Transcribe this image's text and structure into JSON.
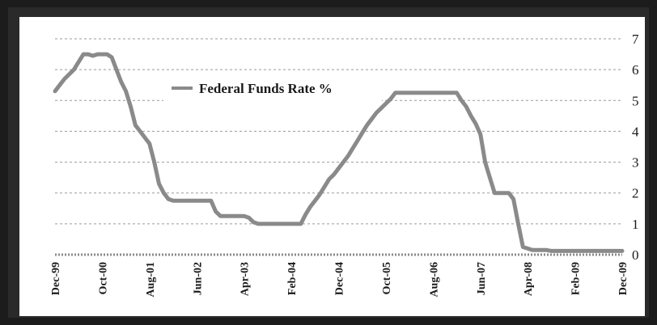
{
  "chart_data": {
    "type": "line",
    "title": "",
    "xlabel": "",
    "ylabel": "",
    "ylim": [
      0,
      7
    ],
    "yticks": [
      "0",
      "1",
      "2",
      "3",
      "4",
      "5",
      "6",
      "7"
    ],
    "grid": true,
    "legend_position": "top-left",
    "y_axis_side": "right",
    "categories": [
      "Dec-99",
      "Oct-00",
      "Aug-01",
      "Jun-02",
      "Apr-03",
      "Feb-04",
      "Dec-04",
      "Oct-05",
      "Aug-06",
      "Jun-07",
      "Apr-08",
      "Feb-09",
      "Dec-09"
    ],
    "series": [
      {
        "name": "Federal Funds Rate %",
        "color": "#8a8a8a",
        "values": [
          [
            0,
            5.3
          ],
          [
            1,
            5.5
          ],
          [
            2,
            5.7
          ],
          [
            3,
            5.85
          ],
          [
            4,
            6.0
          ],
          [
            5,
            6.25
          ],
          [
            6,
            6.5
          ],
          [
            7,
            6.5
          ],
          [
            8,
            6.45
          ],
          [
            9,
            6.5
          ],
          [
            10,
            6.5
          ],
          [
            11,
            6.5
          ],
          [
            12,
            6.4
          ],
          [
            13,
            6.0
          ],
          [
            14,
            5.6
          ],
          [
            15,
            5.3
          ],
          [
            16,
            4.8
          ],
          [
            17,
            4.2
          ],
          [
            18,
            4.0
          ],
          [
            19,
            3.8
          ],
          [
            20,
            3.6
          ],
          [
            21,
            3.0
          ],
          [
            22,
            2.3
          ],
          [
            23,
            2.0
          ],
          [
            24,
            1.8
          ],
          [
            25,
            1.75
          ],
          [
            26,
            1.75
          ],
          [
            27,
            1.75
          ],
          [
            28,
            1.75
          ],
          [
            29,
            1.75
          ],
          [
            30,
            1.75
          ],
          [
            31,
            1.75
          ],
          [
            32,
            1.75
          ],
          [
            33,
            1.75
          ],
          [
            34,
            1.4
          ],
          [
            35,
            1.25
          ],
          [
            36,
            1.25
          ],
          [
            37,
            1.25
          ],
          [
            38,
            1.25
          ],
          [
            39,
            1.25
          ],
          [
            40,
            1.25
          ],
          [
            41,
            1.2
          ],
          [
            42,
            1.05
          ],
          [
            43,
            1.0
          ],
          [
            44,
            1.0
          ],
          [
            45,
            1.0
          ],
          [
            46,
            1.0
          ],
          [
            47,
            1.0
          ],
          [
            48,
            1.0
          ],
          [
            49,
            1.0
          ],
          [
            50,
            1.0
          ],
          [
            51,
            1.0
          ],
          [
            52,
            1.0
          ],
          [
            53,
            1.3
          ],
          [
            54,
            1.55
          ],
          [
            55,
            1.75
          ],
          [
            56,
            1.95
          ],
          [
            57,
            2.2
          ],
          [
            58,
            2.45
          ],
          [
            59,
            2.6
          ],
          [
            60,
            2.8
          ],
          [
            61,
            3.0
          ],
          [
            62,
            3.2
          ],
          [
            63,
            3.45
          ],
          [
            64,
            3.7
          ],
          [
            65,
            3.95
          ],
          [
            66,
            4.2
          ],
          [
            67,
            4.4
          ],
          [
            68,
            4.6
          ],
          [
            69,
            4.75
          ],
          [
            70,
            4.9
          ],
          [
            71,
            5.05
          ],
          [
            72,
            5.25
          ],
          [
            73,
            5.25
          ],
          [
            74,
            5.25
          ],
          [
            75,
            5.25
          ],
          [
            76,
            5.25
          ],
          [
            77,
            5.25
          ],
          [
            78,
            5.25
          ],
          [
            79,
            5.25
          ],
          [
            80,
            5.25
          ],
          [
            81,
            5.25
          ],
          [
            82,
            5.25
          ],
          [
            83,
            5.25
          ],
          [
            84,
            5.25
          ],
          [
            85,
            5.25
          ],
          [
            86,
            5.0
          ],
          [
            87,
            4.8
          ],
          [
            88,
            4.5
          ],
          [
            89,
            4.25
          ],
          [
            90,
            3.9
          ],
          [
            91,
            3.0
          ],
          [
            92,
            2.5
          ],
          [
            93,
            2.0
          ],
          [
            94,
            2.0
          ],
          [
            95,
            2.0
          ],
          [
            96,
            2.0
          ],
          [
            97,
            1.8
          ],
          [
            98,
            1.0
          ],
          [
            99,
            0.25
          ],
          [
            100,
            0.2
          ],
          [
            101,
            0.15
          ],
          [
            102,
            0.15
          ],
          [
            103,
            0.15
          ],
          [
            104,
            0.15
          ],
          [
            105,
            0.12
          ],
          [
            106,
            0.12
          ],
          [
            107,
            0.12
          ],
          [
            108,
            0.12
          ],
          [
            109,
            0.12
          ],
          [
            110,
            0.12
          ],
          [
            111,
            0.12
          ],
          [
            112,
            0.12
          ],
          [
            113,
            0.12
          ],
          [
            114,
            0.12
          ],
          [
            115,
            0.12
          ],
          [
            116,
            0.12
          ],
          [
            117,
            0.12
          ],
          [
            118,
            0.12
          ],
          [
            119,
            0.12
          ],
          [
            120,
            0.12
          ]
        ]
      }
    ]
  }
}
